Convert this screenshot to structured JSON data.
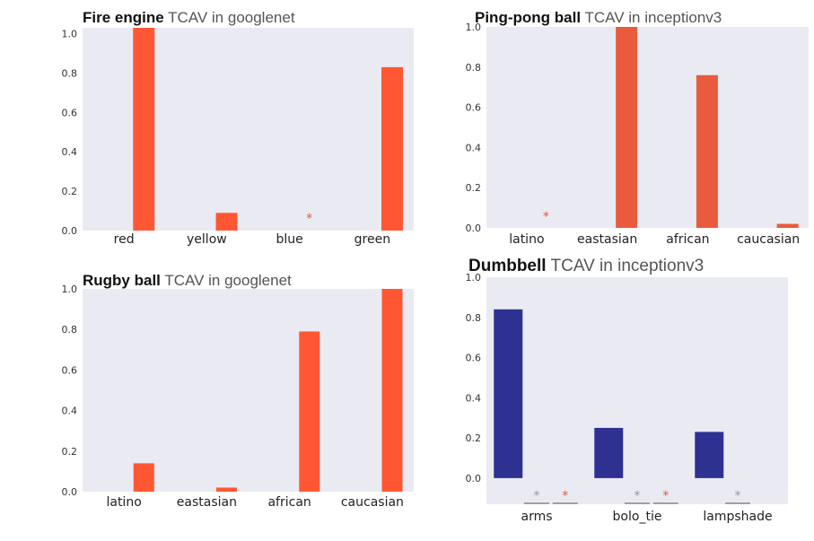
{
  "chart_data": [
    {
      "id": "fire",
      "type": "bar",
      "title": "Fire engine",
      "title_suffix": "TCAV in googlenet",
      "categories": [
        "red",
        "yellow",
        "blue",
        "green"
      ],
      "values": [
        1.03,
        0.09,
        null,
        0.83
      ],
      "stars": [
        "",
        "",
        "*",
        ""
      ],
      "ylim": [
        0,
        1.03
      ],
      "yticks": [
        0.0,
        0.2,
        0.4,
        0.6,
        0.8,
        1.0
      ],
      "bar_color": "#ff5733",
      "star_color": "#e05a3a",
      "grid": false
    },
    {
      "id": "pingpong",
      "type": "bar",
      "title": "Ping-pong ball",
      "title_suffix": "TCAV in inceptionv3",
      "categories": [
        "latino",
        "eastasian",
        "african",
        "caucasian"
      ],
      "values": [
        null,
        1.0,
        0.76,
        0.02
      ],
      "stars": [
        "*",
        "",
        "",
        ""
      ],
      "ylim": [
        0,
        1.0
      ],
      "yticks": [
        0.0,
        0.2,
        0.4,
        0.6,
        0.8,
        1.0
      ],
      "bar_color": "#e95b3c",
      "star_color": "#e05a3a",
      "grid": false
    },
    {
      "id": "rugby",
      "type": "bar",
      "title": "Rugby ball",
      "title_suffix": "TCAV in googlenet",
      "categories": [
        "latino",
        "eastasian",
        "african",
        "caucasian"
      ],
      "values": [
        0.14,
        0.02,
        0.79,
        1.0
      ],
      "stars": [
        "",
        "",
        "",
        ""
      ],
      "ylim": [
        0,
        1.0
      ],
      "yticks": [
        0.0,
        0.2,
        0.4,
        0.6,
        0.8,
        1.0
      ],
      "bar_color": "#ff5733",
      "star_color": "#e05a3a",
      "grid": false
    },
    {
      "id": "dumbbell",
      "type": "bar",
      "title": "Dumbbell",
      "title_suffix": "TCAV in inceptionv3",
      "categories": [
        "arms",
        "bolo_tie",
        "lampshade"
      ],
      "series": [
        {
          "values": [
            0.84,
            0.25,
            0.23
          ],
          "color": "#2e3192",
          "stars": [
            "",
            "",
            ""
          ]
        },
        {
          "values": [
            null,
            null,
            null
          ],
          "color": "#999999",
          "stars": [
            "*",
            "*",
            "*"
          ]
        },
        {
          "values": [
            null,
            null,
            null
          ],
          "color": "#e05a3a",
          "stars": [
            "*",
            "*",
            ""
          ]
        }
      ],
      "ylim": [
        -0.13,
        1.0
      ],
      "yticks": [
        0.0,
        0.2,
        0.4,
        0.6,
        0.8,
        1.0
      ],
      "grid": false
    }
  ]
}
